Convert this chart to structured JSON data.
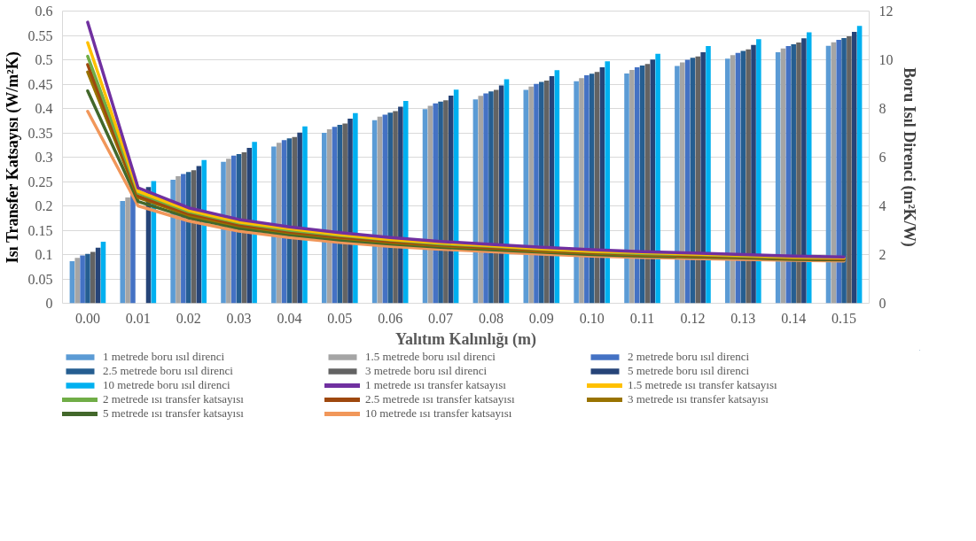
{
  "chart_data": {
    "type": "bar",
    "xlabel": "Yalıtım Kalınlığı (m)",
    "ylabel": "Isı Transfer Katsayısı (W/m²K)",
    "y2label": "Boru Isıl Direnci (m²K/W)",
    "categories": [
      "0.00",
      "0.01",
      "0.02",
      "0.03",
      "0.04",
      "0.05",
      "0.06",
      "0.07",
      "0.08",
      "0.09",
      "0.10",
      "0.11",
      "0.12",
      "0.13",
      "0.14",
      "0.15"
    ],
    "ylim": [
      0,
      0.6
    ],
    "yticks": [
      0,
      0.05,
      0.1,
      0.15,
      0.2,
      0.25,
      0.3,
      0.35,
      0.4,
      0.45,
      0.5,
      0.55,
      0.6
    ],
    "y2lim": [
      0,
      12
    ],
    "y2ticks": [
      0,
      2,
      4,
      6,
      8,
      10,
      12
    ],
    "grid": "y",
    "legend": "bottom",
    "series": [
      {
        "name": "1 metrede boru ısıl direnci",
        "axis": "y2",
        "color": "#5b9bd5",
        "values": [
          1.73,
          4.2,
          5.07,
          5.81,
          6.44,
          7.0,
          7.52,
          7.97,
          8.37,
          8.76,
          9.12,
          9.44,
          9.75,
          10.05,
          10.31,
          10.57
        ]
      },
      {
        "name": "1.5 metrede boru ısıl direnci",
        "axis": "y2",
        "color": "#a5a5a5",
        "values": [
          1.86,
          4.35,
          5.22,
          5.94,
          6.59,
          7.15,
          7.66,
          8.11,
          8.52,
          8.9,
          9.25,
          9.58,
          9.89,
          10.19,
          10.46,
          10.72
        ]
      },
      {
        "name": "2 metrede boru ısıl direnci",
        "axis": "y2",
        "color": "#4472c4",
        "values": [
          1.96,
          4.45,
          5.31,
          6.06,
          6.7,
          7.25,
          7.75,
          8.21,
          8.62,
          9.01,
          9.36,
          9.69,
          10.0,
          10.28,
          10.56,
          10.82
        ]
      },
      {
        "name": "2.5 metrede boru ısıl direnci",
        "axis": "y2",
        "color": "#255e91",
        "values": [
          2.03,
          null,
          5.39,
          6.13,
          6.77,
          7.33,
          7.83,
          8.28,
          8.7,
          9.09,
          9.43,
          9.76,
          10.08,
          10.36,
          10.64,
          10.89
        ]
      },
      {
        "name": "3 metrede boru ısıl direnci",
        "axis": "y2",
        "color": "#636363",
        "values": [
          2.11,
          null,
          5.46,
          6.2,
          6.83,
          7.38,
          7.89,
          8.34,
          8.76,
          9.15,
          9.5,
          9.83,
          10.14,
          10.43,
          10.71,
          10.96
        ]
      },
      {
        "name": "5 metrede boru ısıl direnci",
        "axis": "y2",
        "color": "#264478",
        "values": [
          2.28,
          4.77,
          5.64,
          6.38,
          7.01,
          7.58,
          8.07,
          8.53,
          8.95,
          9.33,
          9.69,
          10.01,
          10.31,
          10.61,
          10.88,
          11.15
        ]
      },
      {
        "name": "10 metrede boru ısıl direnci",
        "axis": "y2",
        "color": "#00b0f0",
        "values": [
          2.53,
          5.02,
          5.88,
          6.63,
          7.26,
          7.81,
          8.31,
          8.77,
          9.2,
          9.57,
          9.94,
          10.25,
          10.56,
          10.85,
          11.13,
          11.39
        ]
      },
      {
        "name": "1 metrede ısı transfer katsayısı",
        "type": "line",
        "axis": "y",
        "color": "#7030a0",
        "values": [
          0.577,
          0.237,
          0.196,
          0.172,
          0.157,
          0.145,
          0.135,
          0.127,
          0.121,
          0.115,
          0.11,
          0.106,
          0.103,
          0.1,
          0.097,
          0.095
        ]
      },
      {
        "name": "1.5 metrede ısı transfer katsayısı",
        "type": "line",
        "axis": "y",
        "color": "#ffc000",
        "values": [
          0.535,
          0.23,
          0.191,
          0.167,
          0.153,
          0.141,
          0.131,
          0.124,
          0.118,
          0.112,
          0.107,
          0.104,
          0.101,
          0.098,
          0.095,
          0.093
        ]
      },
      {
        "name": "2 metrede ısı transfer katsayısı",
        "type": "line",
        "axis": "y",
        "color": "#70ad47",
        "values": [
          0.507,
          0.226,
          0.188,
          0.165,
          0.15,
          0.139,
          0.13,
          0.122,
          0.117,
          0.111,
          0.106,
          0.102,
          0.1,
          0.097,
          0.094,
          0.093
        ]
      },
      {
        "name": "2.5 metrede ısı transfer katsayısı",
        "type": "line",
        "axis": "y",
        "color": "#9e480e",
        "values": [
          0.49,
          0.22,
          0.184,
          0.161,
          0.147,
          0.136,
          0.127,
          0.12,
          0.114,
          0.109,
          0.104,
          0.101,
          0.098,
          0.096,
          0.093,
          0.091
        ]
      },
      {
        "name": "3 metrede ısı transfer katsayısı",
        "type": "line",
        "axis": "y",
        "color": "#997300",
        "values": [
          0.475,
          0.217,
          0.181,
          0.159,
          0.145,
          0.134,
          0.125,
          0.118,
          0.113,
          0.107,
          0.103,
          0.099,
          0.097,
          0.095,
          0.092,
          0.091
        ]
      },
      {
        "name": "5 metrede ısı transfer katsayısı",
        "type": "line",
        "axis": "y",
        "color": "#43682b",
        "values": [
          0.436,
          0.209,
          0.176,
          0.154,
          0.141,
          0.13,
          0.122,
          0.115,
          0.11,
          0.105,
          0.1,
          0.097,
          0.095,
          0.093,
          0.09,
          0.089
        ]
      },
      {
        "name": "10 metrede ısı transfer katsayısı",
        "type": "line",
        "axis": "y",
        "color": "#f1975a",
        "values": [
          0.394,
          0.2,
          0.169,
          0.148,
          0.135,
          0.125,
          0.117,
          0.111,
          0.106,
          0.101,
          0.097,
          0.094,
          0.092,
          0.09,
          0.088,
          0.087
        ]
      }
    ]
  }
}
